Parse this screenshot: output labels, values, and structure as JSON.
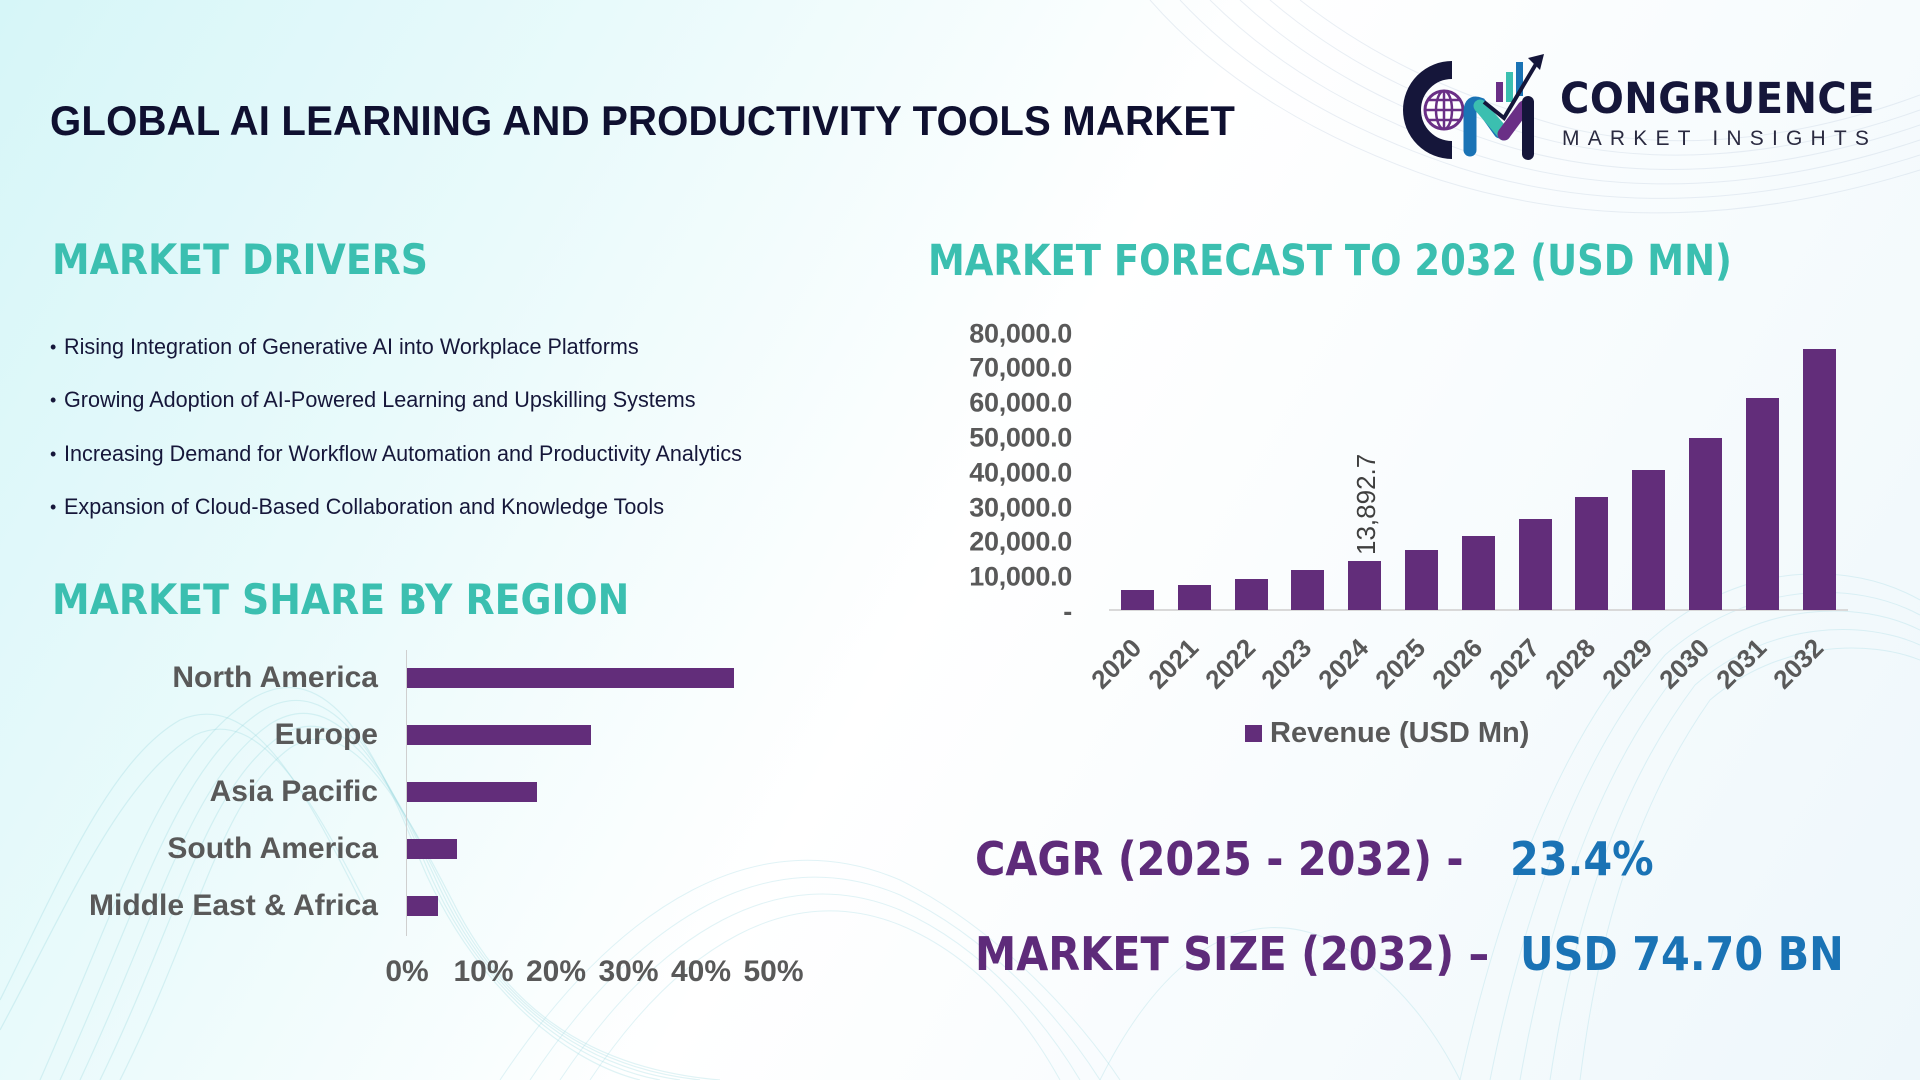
{
  "header": {
    "title": "GLOBAL AI LEARNING AND PRODUCTIVITY TOOLS MARKET",
    "logo": {
      "icon": "cm-growth-logo-icon",
      "name": "CONGRUENCE",
      "subtitle": "MARKET INSIGHTS"
    }
  },
  "drivers": {
    "heading": "MARKET DRIVERS",
    "bullet": "•",
    "items": [
      "Rising Integration of Generative AI into Workplace Platforms",
      "Growing Adoption of AI-Powered Learning and Upskilling Systems",
      "Increasing Demand for Workflow Automation and Productivity Analytics",
      "Expansion of Cloud-Based Collaboration and Knowledge Tools"
    ]
  },
  "region": {
    "heading": "MARKET SHARE BY REGION"
  },
  "forecast": {
    "heading": "MARKET FORECAST TO 2032 (USD MN)"
  },
  "stats": {
    "cagr_label": "CAGR (2025 - 2032) -",
    "cagr_value": "23.4%",
    "size_label": "MARKET SIZE (2032) –",
    "size_value": "USD 74.70 BN"
  },
  "colors": {
    "title": "#0f1030",
    "heading_teal": "#3bbfb0",
    "bar_purple": "#622d7a",
    "stat_label_purple": "#5e2b7a",
    "stat_value_blue": "#1a73b5",
    "axis_text": "#595959"
  },
  "chart_data": [
    {
      "type": "bar",
      "title": "MARKET FORECAST TO 2032 (USD MN)",
      "orientation": "vertical",
      "categories": [
        "2020",
        "2021",
        "2022",
        "2023",
        "2024",
        "2025",
        "2026",
        "2027",
        "2028",
        "2029",
        "2030",
        "2031",
        "2032"
      ],
      "series": [
        {
          "name": "Revenue (USD Mn)",
          "values": [
            5800,
            7200,
            8950,
            11300,
            13892.7,
            17100,
            21100,
            26000,
            32300,
            39900,
            49200,
            60700,
            74700
          ]
        }
      ],
      "data_labels": [
        {
          "category": "2024",
          "text": "13,892.7",
          "rotation": -90
        }
      ],
      "yticks": [
        "-",
        "10,000.0",
        "20,000.0",
        "30,000.0",
        "40,000.0",
        "50,000.0",
        "60,000.0",
        "70,000.0",
        "80,000.0"
      ],
      "ylim": [
        0,
        80000
      ],
      "xlabel": "",
      "ylabel": "",
      "x_tick_rotation": -45,
      "legend": {
        "position": "bottom",
        "entries": [
          "Revenue (USD Mn)"
        ]
      },
      "grid": false
    },
    {
      "type": "bar",
      "title": "MARKET SHARE BY REGION",
      "orientation": "horizontal",
      "categories": [
        "North America",
        "Europe",
        "Asia Pacific",
        "South America",
        "Middle East & Africa"
      ],
      "series": [
        {
          "name": "Market Share",
          "values": [
            45.1,
            25.4,
            17.9,
            6.9,
            4.3
          ]
        }
      ],
      "xticks": [
        "0%",
        "10%",
        "20%",
        "30%",
        "40%",
        "50%"
      ],
      "xlim": [
        0,
        50
      ],
      "unit": "%",
      "legend": null,
      "grid": false
    }
  ]
}
